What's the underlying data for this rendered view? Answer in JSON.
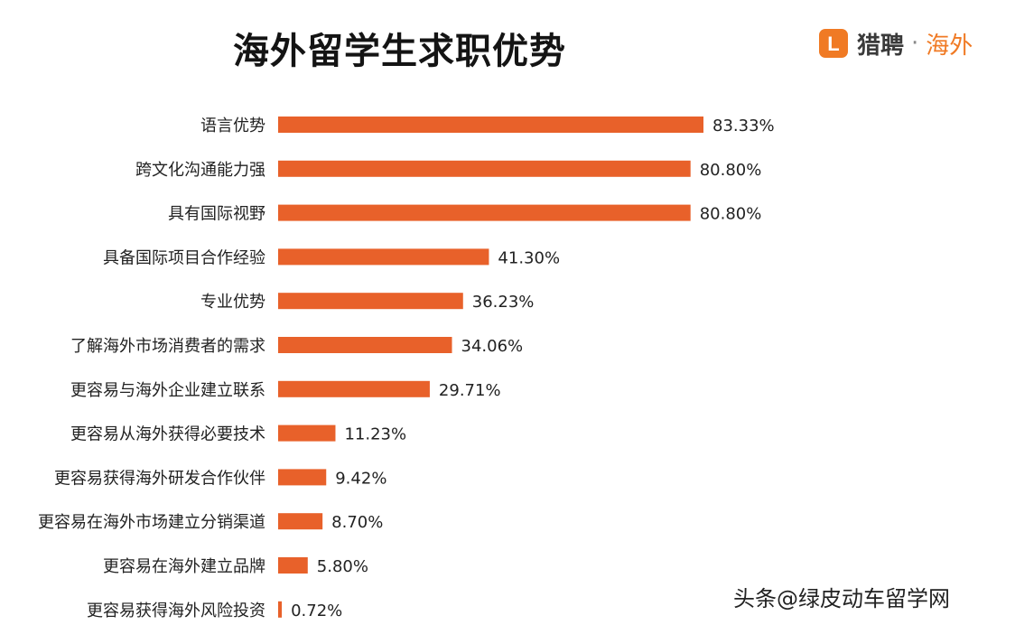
{
  "header": {
    "brand_name": "猎聘",
    "brand_dot": "·",
    "brand_sub": "海外",
    "logo_letter": "L"
  },
  "watermark": {
    "platform": "头条",
    "handle": "@绿皮动车留学网"
  },
  "colors": {
    "bar": "#e8612a",
    "accent": "#f07a24"
  },
  "chart_data": {
    "type": "bar",
    "orientation": "horizontal",
    "title": "海外留学生求职优势",
    "xlabel": "",
    "ylabel": "",
    "xlim": [
      0,
      100
    ],
    "value_suffix": "%",
    "categories": [
      "语言优势",
      "跨文化沟通能力强",
      "具有国际视野",
      "具备国际项目合作经验",
      "专业优势",
      "了解海外市场消费者的需求",
      "更容易与海外企业建立联系",
      "更容易从海外获得必要技术",
      "更容易获得海外研发合作伙伴",
      "更容易在海外市场建立分销渠道",
      "更容易在海外建立品牌",
      "更容易获得海外风险投资"
    ],
    "values": [
      83.33,
      80.8,
      80.8,
      41.3,
      36.23,
      34.06,
      29.71,
      11.23,
      9.42,
      8.7,
      5.8,
      0.72
    ],
    "labels": [
      "83.33%",
      "80.80%",
      "80.80%",
      "41.30%",
      "36.23%",
      "34.06%",
      "29.71%",
      "11.23%",
      "9.42%",
      "8.70%",
      "5.80%",
      "0.72%"
    ]
  }
}
